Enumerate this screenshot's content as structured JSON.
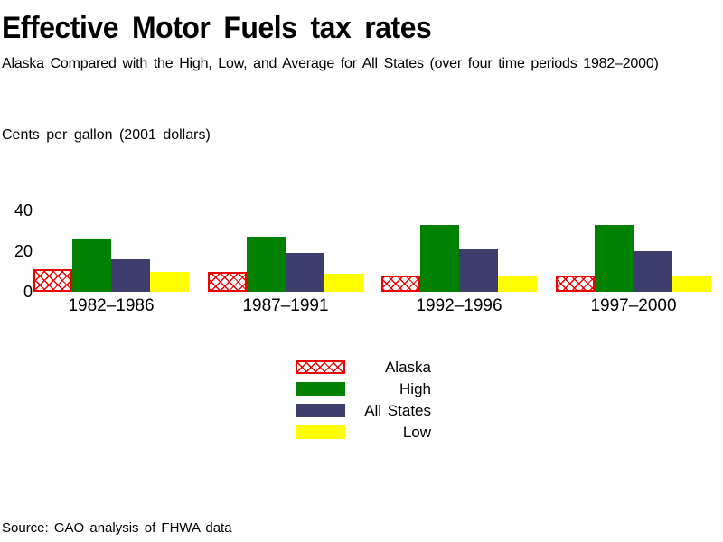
{
  "header": {
    "title": "Effective Motor Fuels tax rates",
    "subtitle": "Alaska Compared with the High, Low, and Average for All States (over four time periods 1982–2000)"
  },
  "footer": {
    "source": "Source: GAO analysis of FHWA data"
  },
  "colors": {
    "alaska_red": "#ee0000",
    "high_green": "#008000",
    "all_states_navy": "#3e3e6e",
    "low_yellow": "#ffff00",
    "text": "#000000",
    "background": "#ffffff"
  },
  "chart_data": {
    "type": "bar",
    "title": "Effective Motor Fuels tax rates",
    "subtitle": "Alaska Compared with the High, Low, and Average for All States (over four time periods 1982–2000)",
    "ylabel": "Cents per gallon (2001 dollars)",
    "xlabel": "",
    "categories": [
      "1982–1986",
      "1987–1991",
      "1992–1996",
      "1997–2000"
    ],
    "series": [
      {
        "name": "Alaska",
        "style": "crosshatch",
        "color": "#ee0000",
        "values": [
          11,
          10,
          8,
          8
        ]
      },
      {
        "name": "High",
        "style": "solid",
        "color": "#008000",
        "values": [
          26,
          27,
          33,
          33
        ]
      },
      {
        "name": "All States",
        "style": "solid",
        "color": "#3e3e6e",
        "values": [
          16,
          19,
          21,
          20
        ]
      },
      {
        "name": "Low",
        "style": "solid",
        "color": "#ffff00",
        "values": [
          10,
          9,
          8,
          8
        ]
      }
    ],
    "ylim": [
      0,
      40
    ],
    "yticks": [
      40,
      20,
      0
    ],
    "grid": false,
    "axis_lines": false,
    "legend_position": "bottom-center"
  }
}
